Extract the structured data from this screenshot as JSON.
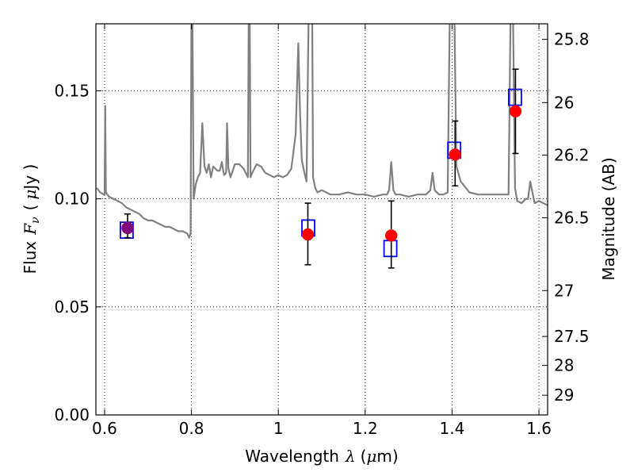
{
  "chart_data": {
    "type": "scatter",
    "xlabel": "Wavelength",
    "xlabel_symbol": "λ",
    "xlabel_unit_open": "(",
    "xlabel_unit_mu": "μ",
    "xlabel_unit_rest": "m)",
    "ylabel": "Flux",
    "ylabel_symbol": "F",
    "ylabel_sub": "ν",
    "ylabel_unit_open": "(",
    "ylabel_unit_mu": "μ",
    "ylabel_unit_rest": "Jy )",
    "y2label": "Magnitude (AB)",
    "xlim": [
      0.58,
      1.62
    ],
    "ylim": [
      0.0,
      0.181
    ],
    "grid": true,
    "xticks": [
      0.6,
      0.8,
      1.0,
      1.2,
      1.4,
      1.6
    ],
    "xtick_labels": [
      "0.6",
      "0.8",
      "1",
      "1.2",
      "1.4",
      "1.6"
    ],
    "yticks": [
      0.0,
      0.05,
      0.1,
      0.15
    ],
    "ytick_labels": [
      "0.00",
      "0.05",
      "0.10",
      "0.15"
    ],
    "y2ticks": [
      {
        "label": "25.8",
        "mag": 25.8
      },
      {
        "label": "26",
        "mag": 26.0
      },
      {
        "label": "26.2",
        "mag": 26.2
      },
      {
        "label": "26.5",
        "mag": 26.5
      },
      {
        "label": "27",
        "mag": 27.0
      },
      {
        "label": "27.5",
        "mag": 27.5
      },
      {
        "label": "28",
        "mag": 28.0
      },
      {
        "label": "29",
        "mag": 29.0
      }
    ],
    "series": [
      {
        "kind": "model_spectrum",
        "color": "#808080",
        "x": [
          0.582,
          0.59,
          0.598,
          0.6,
          0.6015,
          0.603,
          0.61,
          0.62,
          0.63,
          0.64,
          0.65,
          0.66,
          0.67,
          0.68,
          0.69,
          0.7,
          0.71,
          0.72,
          0.73,
          0.74,
          0.75,
          0.76,
          0.77,
          0.78,
          0.79,
          0.795,
          0.798,
          0.8,
          0.802,
          0.805,
          0.81,
          0.815,
          0.82,
          0.825,
          0.83,
          0.835,
          0.84,
          0.845,
          0.85,
          0.855,
          0.86,
          0.865,
          0.87,
          0.875,
          0.88,
          0.882,
          0.885,
          0.89,
          0.9,
          0.91,
          0.92,
          0.93,
          0.932,
          0.934,
          0.936,
          0.94,
          0.95,
          0.96,
          0.97,
          0.98,
          0.99,
          1.0,
          1.01,
          1.02,
          1.03,
          1.04,
          1.046,
          1.05,
          1.054,
          1.06,
          1.065,
          1.07,
          1.072,
          1.075,
          1.078,
          1.08,
          1.085,
          1.09,
          1.1,
          1.12,
          1.14,
          1.16,
          1.18,
          1.2,
          1.22,
          1.24,
          1.25,
          1.255,
          1.26,
          1.265,
          1.27,
          1.28,
          1.3,
          1.32,
          1.34,
          1.35,
          1.355,
          1.36,
          1.37,
          1.38,
          1.39,
          1.395,
          1.4,
          1.405,
          1.41,
          1.42,
          1.44,
          1.46,
          1.48,
          1.5,
          1.52,
          1.53,
          1.535,
          1.54,
          1.545,
          1.55,
          1.56,
          1.57,
          1.575,
          1.58,
          1.59,
          1.6,
          1.62
        ],
        "y": [
          0.105,
          0.103,
          0.102,
          0.102,
          0.143,
          0.103,
          0.101,
          0.1,
          0.099,
          0.098,
          0.096,
          0.095,
          0.094,
          0.093,
          0.091,
          0.09,
          0.09,
          0.089,
          0.088,
          0.087,
          0.087,
          0.086,
          0.085,
          0.085,
          0.084,
          0.082,
          0.084,
          0.19,
          0.19,
          0.1,
          0.107,
          0.11,
          0.112,
          0.135,
          0.115,
          0.112,
          0.116,
          0.11,
          0.115,
          0.114,
          0.113,
          0.113,
          0.117,
          0.111,
          0.112,
          0.135,
          0.114,
          0.11,
          0.116,
          0.116,
          0.114,
          0.11,
          0.19,
          0.19,
          0.11,
          0.112,
          0.116,
          0.115,
          0.112,
          0.111,
          0.11,
          0.111,
          0.11,
          0.111,
          0.114,
          0.13,
          0.172,
          0.14,
          0.118,
          0.112,
          0.108,
          0.19,
          0.19,
          0.19,
          0.19,
          0.11,
          0.105,
          0.103,
          0.104,
          0.102,
          0.102,
          0.103,
          0.102,
          0.102,
          0.101,
          0.102,
          0.102,
          0.104,
          0.117,
          0.104,
          0.102,
          0.102,
          0.101,
          0.102,
          0.102,
          0.104,
          0.112,
          0.104,
          0.102,
          0.102,
          0.103,
          0.19,
          0.19,
          0.19,
          0.115,
          0.108,
          0.103,
          0.102,
          0.102,
          0.102,
          0.102,
          0.102,
          0.19,
          0.19,
          0.105,
          0.099,
          0.098,
          0.1,
          0.1,
          0.108,
          0.098,
          0.099,
          0.097
        ]
      },
      {
        "kind": "model_band_flux",
        "color": "#0000ff",
        "marker": "open-square",
        "x": [
          0.651,
          1.069,
          1.258,
          1.405,
          1.545
        ],
        "y": [
          0.0855,
          0.0865,
          0.077,
          0.1225,
          0.147
        ]
      },
      {
        "kind": "observed_flux",
        "color": "#ff0000",
        "marker": "filled-circle",
        "x": [
          0.653,
          1.068,
          1.26,
          1.407,
          1.546
        ],
        "y": [
          0.0865,
          0.0835,
          0.083,
          0.1205,
          0.1405
        ],
        "y_err_low": [
          0.0045,
          0.014,
          0.015,
          0.0145,
          0.0195
        ],
        "y_err_high": [
          0.0065,
          0.0145,
          0.016,
          0.0155,
          0.0195
        ]
      },
      {
        "kind": "observed_flux_overlap",
        "color": "#800080",
        "marker": "filled-circle",
        "x": [
          0.653
        ],
        "y": [
          0.0865
        ]
      }
    ]
  }
}
